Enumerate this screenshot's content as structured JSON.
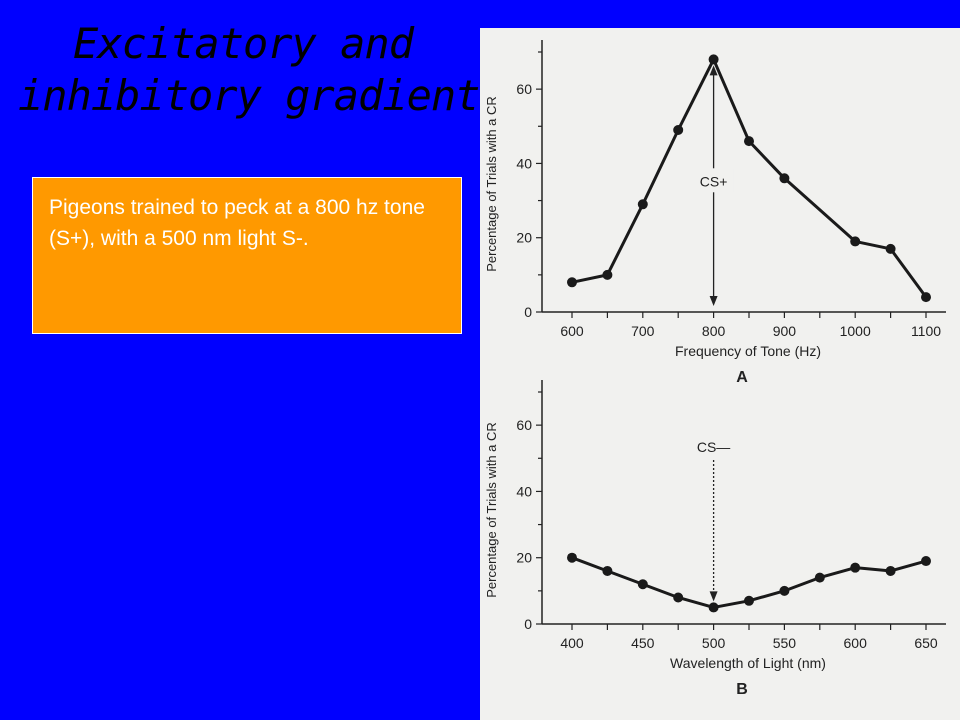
{
  "slide": {
    "title_line1": "Excitatory and",
    "title_line2": "inhibitory gradients",
    "body_text": "Pigeons trained to peck at a 800 hz tone (S+), with a 500 nm light S-."
  },
  "colors": {
    "background": "#0000ff",
    "text_box": "#ff9900",
    "figure_bg": "#f1f1ef"
  },
  "chart_data": [
    {
      "type": "line",
      "panel_label": "A",
      "xlabel": "Frequency of Tone (Hz)",
      "ylabel": "Percentage of Trials with a CR",
      "xlim": [
        600,
        1100
      ],
      "ylim": [
        0,
        70
      ],
      "xticks": [
        600,
        700,
        800,
        900,
        1000,
        1100
      ],
      "yticks": [
        0,
        20,
        40,
        60
      ],
      "x": [
        600,
        650,
        700,
        750,
        800,
        850,
        900,
        1000,
        1050,
        1100
      ],
      "y": [
        8,
        10,
        29,
        49,
        68,
        46,
        36,
        19,
        17,
        4
      ],
      "annotation": {
        "text": "CS+",
        "x": 800
      },
      "grid": false
    },
    {
      "type": "line",
      "panel_label": "B",
      "xlabel": "Wavelength of Light (nm)",
      "ylabel": "Percentage of Trials with a CR",
      "xlim": [
        400,
        650
      ],
      "ylim": [
        0,
        70
      ],
      "xticks": [
        400,
        450,
        500,
        550,
        600,
        650
      ],
      "yticks": [
        0,
        20,
        40,
        60
      ],
      "x": [
        400,
        425,
        450,
        475,
        500,
        525,
        550,
        575,
        600,
        625,
        650
      ],
      "y": [
        20,
        16,
        12,
        8,
        5,
        7,
        10,
        14,
        17,
        16,
        19
      ],
      "annotation": {
        "text": "CS—",
        "x": 500
      },
      "grid": false
    }
  ]
}
